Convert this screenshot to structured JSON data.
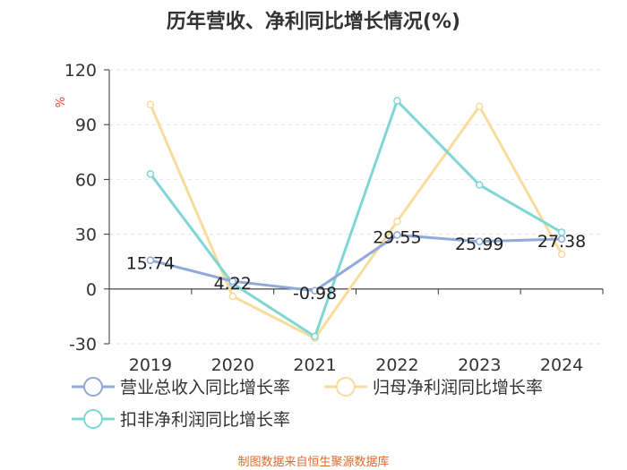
{
  "title": "历年营收、净利同比增长情况(%)",
  "footer": "制图数据来自恒生聚源数据库",
  "chart_data": {
    "type": "line",
    "title": "历年营收、净利同比增长情况(%)",
    "ylabel": "%",
    "ylim": [
      -30,
      120
    ],
    "yticks": [
      "-30",
      "0",
      "30",
      "60",
      "90",
      "120"
    ],
    "categories": [
      "2019",
      "2020",
      "2021",
      "2022",
      "2023",
      "2024"
    ],
    "series": [
      {
        "name": "营业总收入同比增长率",
        "color": "#8fa9d8",
        "values": [
          15.74,
          4.22,
          -0.98,
          29.55,
          25.99,
          27.38
        ],
        "labels": [
          "15.74",
          "4.22",
          "-0.98",
          "29.55",
          "25.99",
          "27.38"
        ]
      },
      {
        "name": "归母净利润同比增长率",
        "color": "#f8dc9c",
        "values": [
          101,
          -4,
          -27,
          37,
          100,
          19
        ],
        "labels": []
      },
      {
        "name": "扣非净利润同比增长率",
        "color": "#7fd6d6",
        "values": [
          63,
          3,
          -26,
          103,
          57,
          31
        ],
        "labels": []
      }
    ],
    "legend": "bottom"
  }
}
